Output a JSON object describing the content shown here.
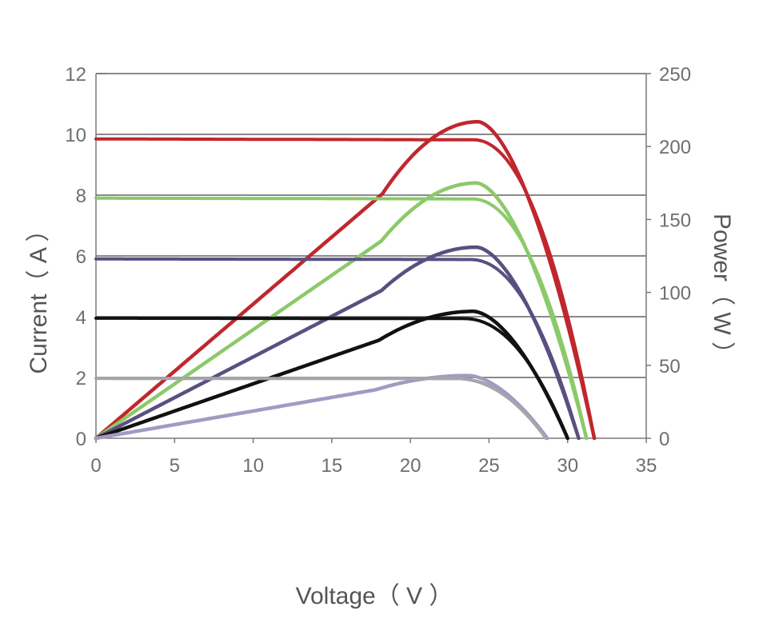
{
  "chart_data": {
    "type": "line",
    "title": "",
    "xlabel": "Voltage（ V ）",
    "ylabel_left": "Current（ A ）",
    "ylabel_right": "Power（ W ）",
    "xlim": [
      0,
      35
    ],
    "ylim_left": [
      0,
      12
    ],
    "ylim_right": [
      0,
      250
    ],
    "x_ticks": [
      0,
      5,
      10,
      15,
      20,
      25,
      30,
      35
    ],
    "y_left_ticks": [
      0,
      2,
      4,
      6,
      8,
      10,
      12
    ],
    "y_right_ticks": [
      0,
      50,
      100,
      150,
      200,
      250
    ],
    "grid": true,
    "legend": "none",
    "series": [
      {
        "kind": "I-V",
        "color": "#c0272d",
        "isc": 9.85,
        "voc": 31.7,
        "knee": 24.0,
        "pmax_v": 24.3,
        "pmax_w": 217
      },
      {
        "kind": "I-V",
        "color": "#8bc96a",
        "isc": 7.9,
        "voc": 31.2,
        "knee": 23.9,
        "pmax_v": 24.2,
        "pmax_w": 175
      },
      {
        "kind": "I-V",
        "color": "#5a4f80",
        "isc": 5.9,
        "voc": 30.7,
        "knee": 23.8,
        "pmax_v": 24.2,
        "pmax_w": 131
      },
      {
        "kind": "I-V",
        "color": "#111111",
        "isc": 3.95,
        "voc": 30.0,
        "knee": 23.4,
        "pmax_v": 24.0,
        "pmax_w": 87
      },
      {
        "kind": "I-V",
        "color": "#a39ac2",
        "isc": 1.97,
        "voc": 28.7,
        "knee": 22.9,
        "pmax_v": 23.7,
        "pmax_w": 43
      },
      {
        "kind": "I-V",
        "color": "#a6a6a6",
        "isc": 1.97,
        "voc": 28.6,
        "knee": 22.8,
        "pmax_v": 23.6,
        "pmax_w": 42
      }
    ]
  }
}
